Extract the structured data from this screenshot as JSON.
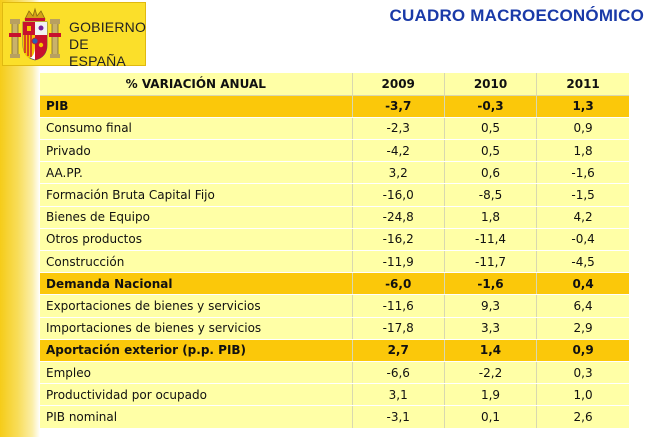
{
  "header": {
    "logo_line1": "GOBIERNO",
    "logo_line2": "DE ESPAÑA",
    "title": "CUADRO MACROECONÓMICO"
  },
  "colors": {
    "title_blue": "#1a3aa8",
    "row_yellow": "#ffffa6",
    "highlight_orange": "#fbc80a",
    "logo_yellow": "#fbdf2a"
  },
  "table": {
    "columns": [
      "% VARIACIÓN ANUAL",
      "2009",
      "2010",
      "2011"
    ],
    "rows": [
      {
        "label": "PIB",
        "values": [
          "-3,7",
          "-0,3",
          "1,3"
        ]
      },
      {
        "label": "Consumo final",
        "values": [
          "-2,3",
          "0,5",
          "0,9"
        ]
      },
      {
        "label": "Privado",
        "values": [
          "-4,2",
          "0,5",
          "1,8"
        ]
      },
      {
        "label": "AA.PP.",
        "values": [
          "3,2",
          "0,6",
          "-1,6"
        ]
      },
      {
        "label": "Formación Bruta Capital Fijo",
        "values": [
          "-16,0",
          "-8,5",
          "-1,5"
        ]
      },
      {
        "label": "Bienes de Equipo",
        "values": [
          "-24,8",
          "1,8",
          "4,2"
        ]
      },
      {
        "label": "Otros productos",
        "values": [
          "-16,2",
          "-11,4",
          "-0,4"
        ]
      },
      {
        "label": "Construcción",
        "values": [
          "-11,9",
          "-11,7",
          "-4,5"
        ]
      },
      {
        "label": "Demanda Nacional",
        "values": [
          "-6,0",
          "-1,6",
          "0,4"
        ]
      },
      {
        "label": "Exportaciones de bienes y servicios",
        "values": [
          "-11,6",
          "9,3",
          "6,4"
        ]
      },
      {
        "label": "Importaciones de bienes y servicios",
        "values": [
          "-17,8",
          "3,3",
          "2,9"
        ]
      },
      {
        "label": "Aportación exterior (p.p. PIB)",
        "values": [
          "2,7",
          "1,4",
          "0,9"
        ]
      },
      {
        "label": "Empleo",
        "values": [
          "-6,6",
          "-2,2",
          "0,3"
        ]
      },
      {
        "label": "Productividad por ocupado",
        "values": [
          "3,1",
          "1,9",
          "1,0"
        ]
      },
      {
        "label": "PIB nominal",
        "values": [
          "-3,1",
          "0,1",
          "2,6"
        ]
      }
    ]
  }
}
